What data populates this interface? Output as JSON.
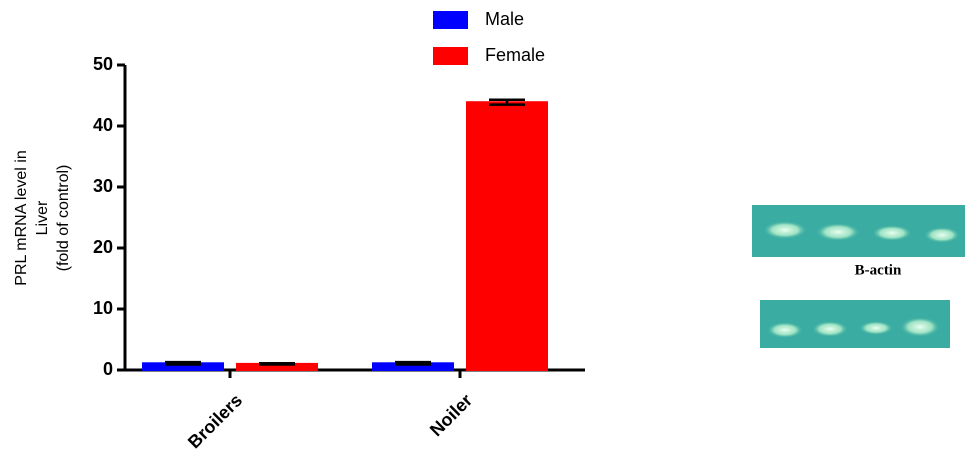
{
  "chart_data": {
    "type": "bar",
    "ylabel": [
      "PRL mRNA level in",
      "Liver",
      "(fold of control)"
    ],
    "categories": [
      "Broilers",
      "Noiler"
    ],
    "series": [
      {
        "name": "Male",
        "color": "#0000ff",
        "values": [
          1.1,
          1.1
        ],
        "errors": [
          0.2,
          0.2
        ]
      },
      {
        "name": "Female",
        "color": "#ff0000",
        "values": [
          1.0,
          43.9
        ],
        "errors": [
          0.1,
          0.4
        ]
      }
    ],
    "ylim": [
      0,
      50
    ],
    "yticks": [
      0,
      10,
      20,
      30,
      40,
      50
    ]
  },
  "gel_label": "B-actin"
}
